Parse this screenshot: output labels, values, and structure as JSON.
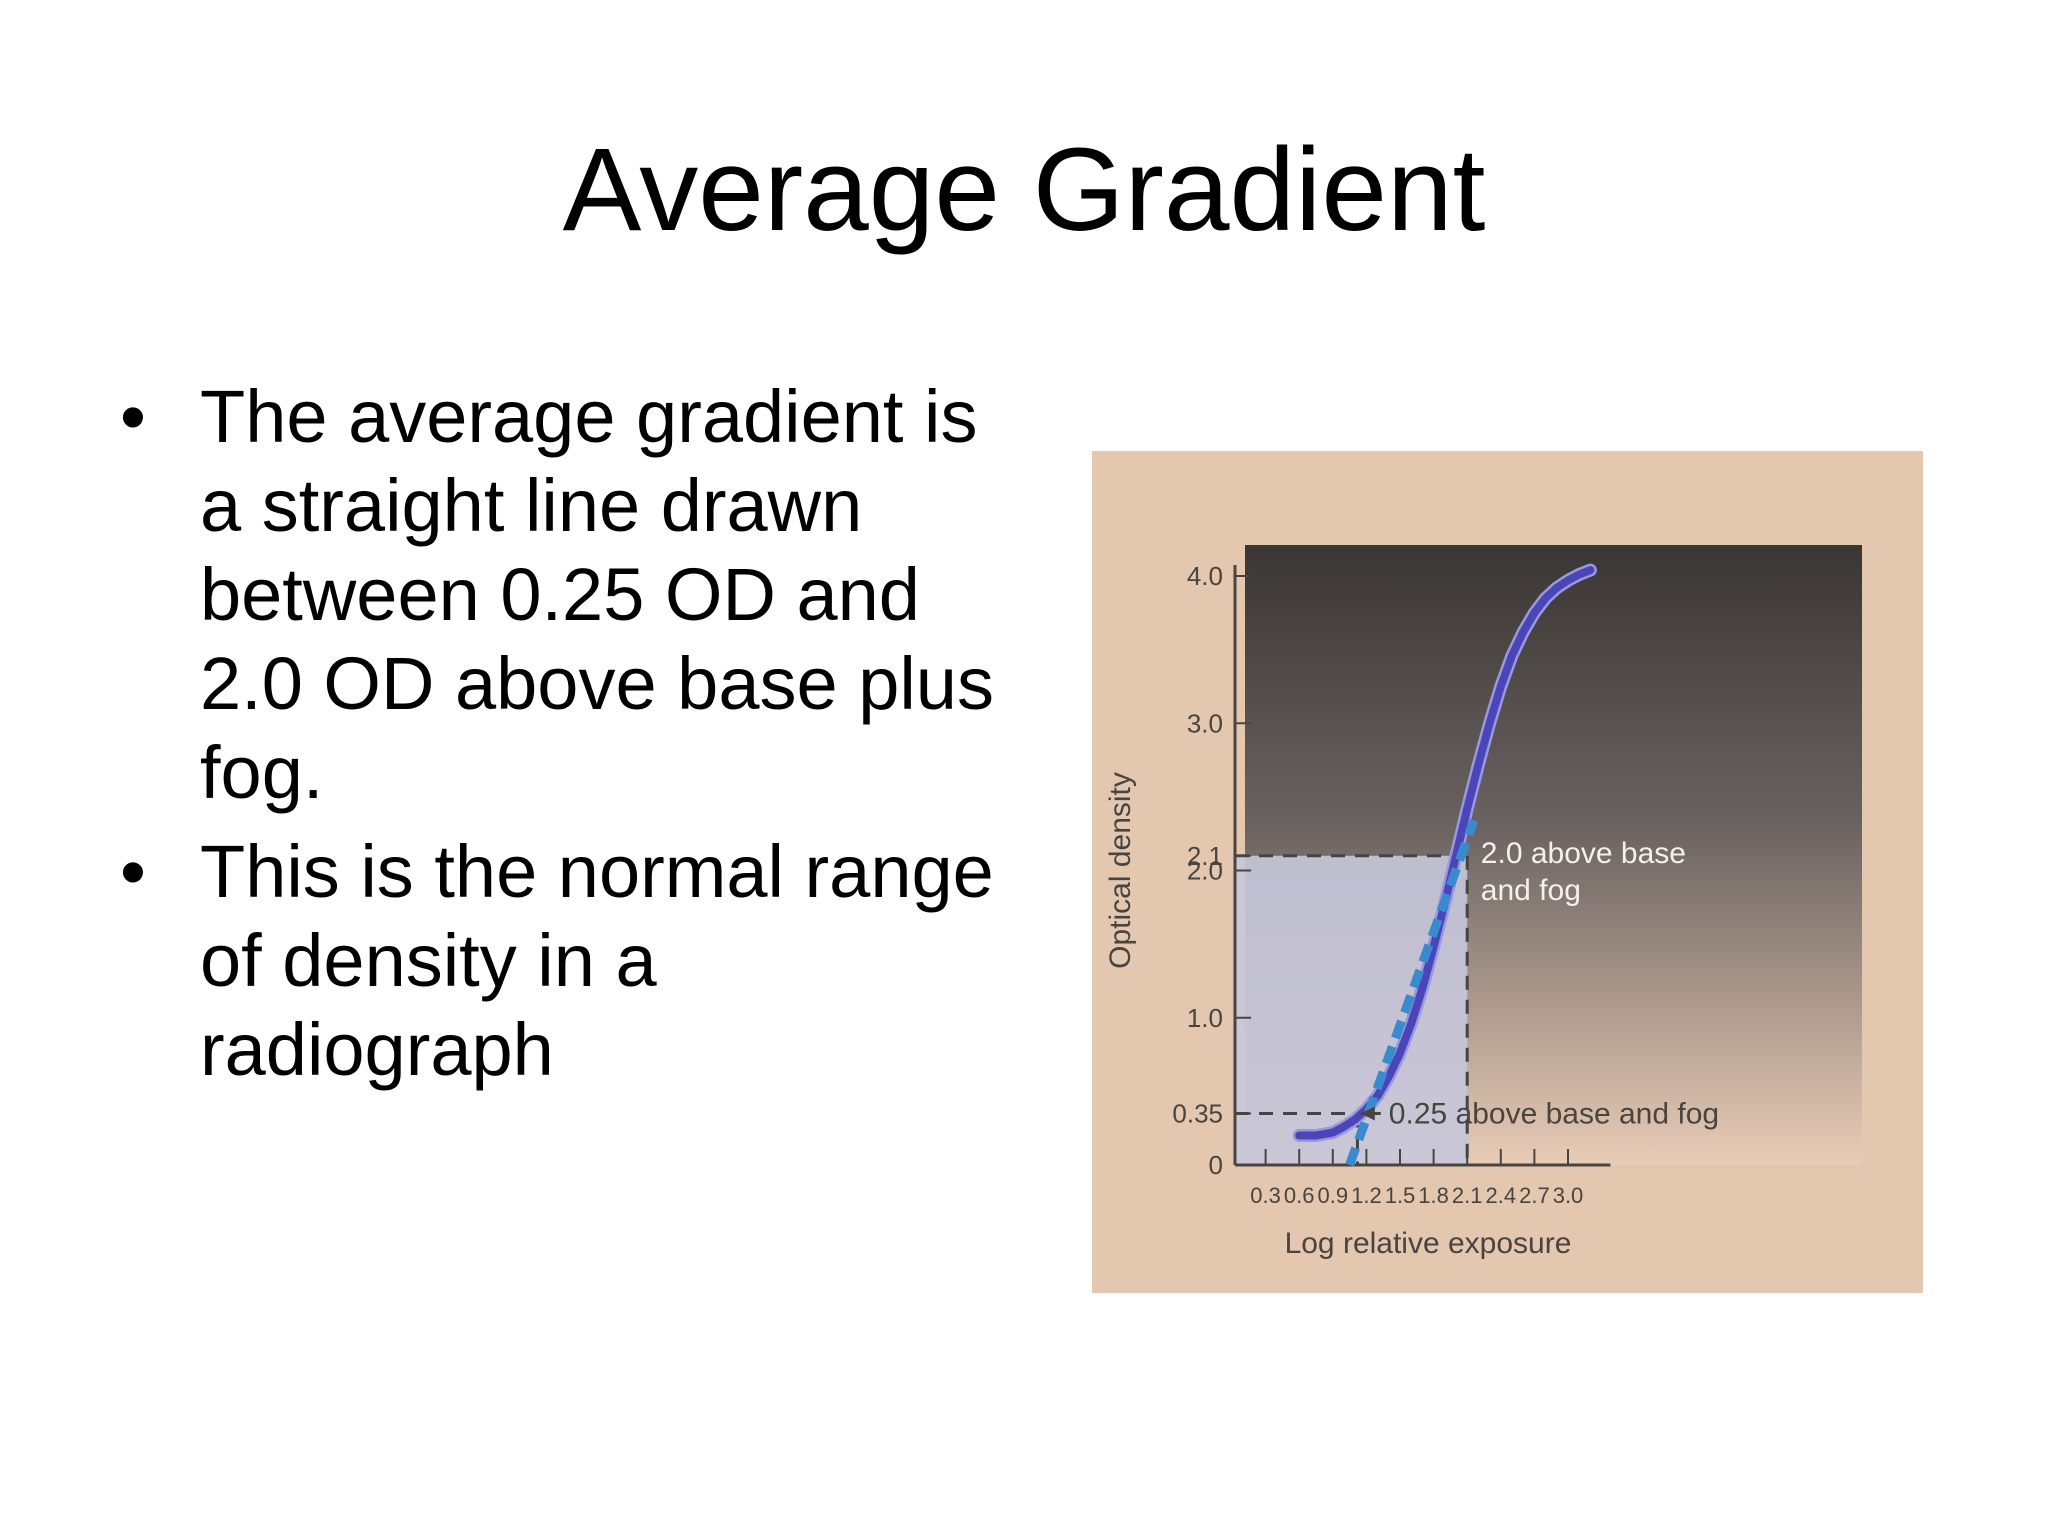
{
  "slide": {
    "title": "Average Gradient",
    "bullets": [
      "The average gradient is a straight line drawn between 0.25 OD and 2.0 OD above base plus fog.",
      "This is the normal range of density in a radiograph"
    ],
    "bullet_glyph": "•"
  },
  "chart_data": {
    "type": "line",
    "title": "",
    "xlabel": "Log relative exposure",
    "ylabel": "Optical density",
    "x_ticks": [
      "0.3",
      "0.6",
      "0.9",
      "1.2",
      "1.5",
      "1.8",
      "2.1",
      "2.4",
      "2.7",
      "3.0"
    ],
    "y_ticks": [
      "0",
      "0.35",
      "1.0",
      "2.0",
      "2.1",
      "3.0",
      "4.0"
    ],
    "xlim": [
      0,
      3.5
    ],
    "ylim": [
      0,
      4.1
    ],
    "grid": false,
    "series": [
      {
        "kind": "characteristic-curve",
        "color": "#4a46b8",
        "x": [
          0.6,
          0.75,
          0.9,
          1.0,
          1.1,
          1.2,
          1.3,
          1.4,
          1.5,
          1.6,
          1.7,
          1.8,
          1.9,
          2.0,
          2.1,
          2.2,
          2.3,
          2.4,
          2.5,
          2.6,
          2.7,
          2.8,
          2.9,
          3.0,
          3.1,
          3.2
        ],
        "y": [
          0.2,
          0.2,
          0.22,
          0.26,
          0.31,
          0.38,
          0.47,
          0.6,
          0.76,
          0.96,
          1.2,
          1.48,
          1.78,
          2.1,
          2.42,
          2.72,
          3.0,
          3.25,
          3.46,
          3.62,
          3.75,
          3.85,
          3.92,
          3.97,
          4.01,
          4.04
        ]
      },
      {
        "kind": "average-gradient",
        "color": "#3a8ad0",
        "dashed": true,
        "x": [
          1.05,
          2.16
        ],
        "y": [
          0.0,
          2.34
        ]
      }
    ],
    "reference_lines": [
      {
        "y": 0.35,
        "x_end": 1.12
      },
      {
        "y": 2.1,
        "x_end": 2.1
      }
    ],
    "annotations": [
      {
        "text": "2.0 above base",
        "x": 2.15,
        "y": 2.05
      },
      {
        "text": "and fog",
        "x": 2.15,
        "y": 1.8
      },
      {
        "text": "0.25 above base and fog",
        "x": 1.4,
        "y": 0.35
      }
    ],
    "colors": {
      "paper": "#e3c7ae",
      "plot_top": "#3a3634",
      "plot_bottom": "#e8ccb6",
      "shaded_region": "#c6c7da",
      "text": "#f4f0ec",
      "axis_text": "#4a4440"
    }
  }
}
